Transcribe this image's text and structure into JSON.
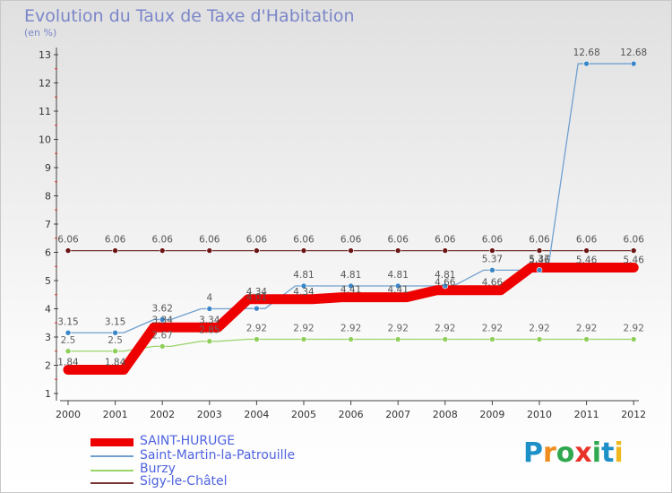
{
  "header": {
    "title": "Evolution du Taux de Taxe d'Habitation",
    "unit": "(en %)"
  },
  "brand": {
    "name": "Proxiti",
    "letters": [
      "P",
      "r",
      "o",
      "x",
      "i",
      "t",
      "i"
    ],
    "colors": [
      "#1e90c8",
      "#f08c1e",
      "#2fa84f",
      "#e8332a",
      "#2fa84f",
      "#1e90c8",
      "#f0b81e"
    ]
  },
  "chart_data": {
    "type": "line",
    "title": "Evolution du Taux de Taxe d'Habitation",
    "ylabel": "(en %)",
    "xlabel": "",
    "ylim": [
      1,
      13
    ],
    "yticks": [
      "1",
      "2",
      "3",
      "4",
      "5",
      "6",
      "7",
      "8",
      "9",
      "10",
      "11",
      "12",
      "13"
    ],
    "categories": [
      "2000",
      "2001",
      "2002",
      "2003",
      "2004",
      "2005",
      "2006",
      "2007",
      "2008",
      "2009",
      "2010",
      "2011",
      "2012"
    ],
    "series": [
      {
        "name": "SAINT-HURUGE",
        "color": "#ee0000",
        "values": [
          1.84,
          1.84,
          3.34,
          3.34,
          4.34,
          4.34,
          4.41,
          4.41,
          4.66,
          4.66,
          5.46,
          5.46,
          5.46
        ],
        "labels": [
          "1.84",
          "1.84",
          "3.34",
          "3.34",
          "4.34",
          "4.34",
          "4.41",
          "4.41",
          "4.66",
          "4.66",
          "5.46",
          "5.46",
          "5.46"
        ]
      },
      {
        "name": "Saint-Martin-la-Patrouille",
        "color": "#6fa0cf",
        "values": [
          3.15,
          3.15,
          3.62,
          4,
          4.01,
          4.81,
          4.81,
          4.81,
          4.81,
          5.37,
          5.37,
          12.68,
          12.68
        ],
        "labels": [
          "3.15",
          "3.15",
          "3.62",
          "4",
          "4.01",
          "4.81",
          "4.81",
          "4.81",
          "4.81",
          "5.37",
          "5.37",
          "12.68",
          "12.68"
        ]
      },
      {
        "name": "Burzy",
        "color": "#9ad46a",
        "values": [
          2.5,
          2.5,
          2.67,
          2.85,
          2.92,
          2.92,
          2.92,
          2.92,
          2.92,
          2.92,
          2.92,
          2.92,
          2.92
        ],
        "labels": [
          "2.5",
          "2.5",
          "2.67",
          "2.85",
          "2.92",
          "2.92",
          "2.92",
          "2.92",
          "2.92",
          "2.92",
          "2.92",
          "2.92",
          "2.92"
        ]
      },
      {
        "name": "Sigy-le-Châtel",
        "color": "#7a3535",
        "values": [
          6.06,
          6.06,
          6.06,
          6.06,
          6.06,
          6.06,
          6.06,
          6.06,
          6.06,
          6.06,
          6.06,
          6.06,
          6.06
        ],
        "labels": [
          "6.06",
          "6.06",
          "6.06",
          "6.06",
          "6.06",
          "6.06",
          "6.06",
          "6.06",
          "6.06",
          "6.06",
          "6.06",
          "6.06",
          "6.06"
        ]
      }
    ],
    "legend": [
      "SAINT-HURUGE",
      "Saint-Martin-la-Patrouille",
      "Burzy",
      "Sigy-le-Châtel"
    ],
    "legend_position": "bottom-left",
    "grid": false
  }
}
